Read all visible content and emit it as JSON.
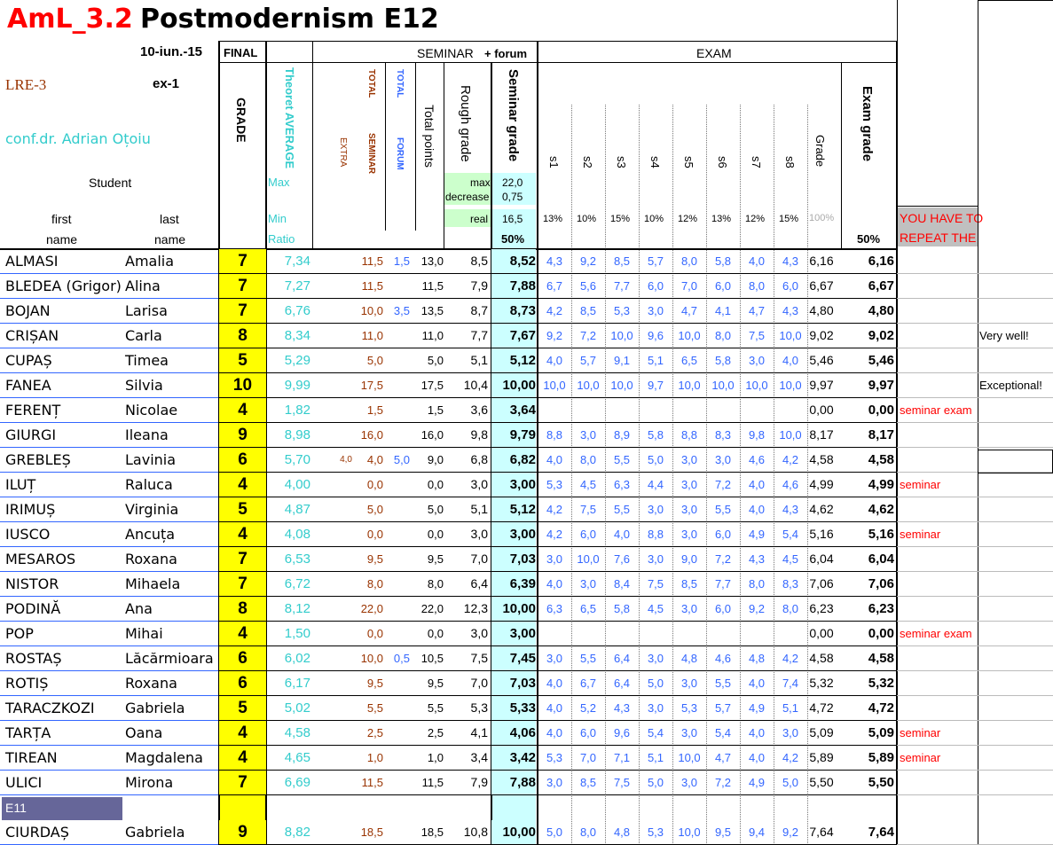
{
  "title": {
    "code": "AmL_3.2",
    "name": "Postmodernism E12"
  },
  "header": {
    "date": "10-iun.-15",
    "ex": "ex-1",
    "lre": "LRE-3",
    "teacher": "conf.dr. Adrian Oțoiu",
    "student_label": "Student",
    "first_label": "first",
    "last_label": "last",
    "name_label": "name",
    "final_label": "FINAL",
    "grade_label": "GRADE",
    "theoret_label": "Theoret AVERAGE",
    "max_label": "Max",
    "min_label": "Min",
    "ratio_label": "Ratio",
    "seminar_label": "SEMINAR",
    "forum_plus_label": "+ forum",
    "total_label": "TOTAL",
    "seminar_sub_label": "SEMINAR",
    "extra_label": "EXTRA",
    "total_forum_label": "TOTAL",
    "forum_sub_label": "FORUM",
    "total_points_label": "Total points",
    "rough_grade_label": "Rough grade",
    "seminar_grade_label": "Seminar grade",
    "max_box_label": "max",
    "max_box_value": "22,0",
    "decrease_label": "decrease",
    "decrease_value": "0,75",
    "real_label": "real",
    "real_value": "16,5",
    "seminar_pct": "50%",
    "exam_label": "EXAM",
    "exam_grade_label": "Exam grade",
    "exam_pct": "50%",
    "grade_col_label": "Grade",
    "grade_pct": "100%",
    "repeat_line1": "YOU HAVE TO",
    "repeat_line2": "REPEAT THE",
    "subjects": [
      "s1",
      "s2",
      "s3",
      "s4",
      "s5",
      "s6",
      "s7",
      "s8"
    ],
    "weights": [
      "13%",
      "10%",
      "15%",
      "10%",
      "12%",
      "13%",
      "12%",
      "15%"
    ]
  },
  "students": [
    {
      "first": "ALMASI",
      "last": "Amalia",
      "grade": "7",
      "theor": "7,34",
      "extra": "",
      "tsem": "11,5",
      "forum": "1,5",
      "tpts": "13,0",
      "rough": "8,5",
      "semg": "8,52",
      "s": [
        "4,3",
        "9,2",
        "8,5",
        "5,7",
        "8,0",
        "5,8",
        "4,0",
        "4,3"
      ],
      "exg": "6,16",
      "exgrade": "6,16",
      "note": "",
      "comment": ""
    },
    {
      "first": "BLEDEA (Grigor)",
      "last": "Alina",
      "grade": "7",
      "theor": "7,27",
      "extra": "",
      "tsem": "11,5",
      "forum": "",
      "tpts": "11,5",
      "rough": "7,9",
      "semg": "7,88",
      "s": [
        "6,7",
        "5,6",
        "7,7",
        "6,0",
        "7,0",
        "6,0",
        "8,0",
        "6,0"
      ],
      "exg": "6,67",
      "exgrade": "6,67",
      "note": "",
      "comment": ""
    },
    {
      "first": "BOJAN",
      "last": "Larisa",
      "grade": "7",
      "theor": "6,76",
      "extra": "",
      "tsem": "10,0",
      "forum": "3,5",
      "tpts": "13,5",
      "rough": "8,7",
      "semg": "8,73",
      "s": [
        "4,2",
        "8,5",
        "5,3",
        "3,0",
        "4,7",
        "4,1",
        "4,7",
        "4,3"
      ],
      "exg": "4,80",
      "exgrade": "4,80",
      "note": "",
      "comment": ""
    },
    {
      "first": "CRIȘAN",
      "last": "Carla",
      "grade": "8",
      "theor": "8,34",
      "extra": "",
      "tsem": "11,0",
      "forum": "",
      "tpts": "11,0",
      "rough": "7,7",
      "semg": "7,67",
      "s": [
        "9,2",
        "7,2",
        "10,0",
        "9,6",
        "10,0",
        "8,0",
        "7,5",
        "10,0"
      ],
      "exg": "9,02",
      "exgrade": "9,02",
      "note": "",
      "comment": "Very well!"
    },
    {
      "first": "CUPAȘ",
      "last": "Timea",
      "grade": "5",
      "theor": "5,29",
      "extra": "",
      "tsem": "5,0",
      "forum": "",
      "tpts": "5,0",
      "rough": "5,1",
      "semg": "5,12",
      "s": [
        "4,0",
        "5,7",
        "9,1",
        "5,1",
        "6,5",
        "5,8",
        "3,0",
        "4,0"
      ],
      "exg": "5,46",
      "exgrade": "5,46",
      "note": "",
      "comment": ""
    },
    {
      "first": "FANEA",
      "last": "Silvia",
      "grade": "10",
      "theor": "9,99",
      "extra": "",
      "tsem": "17,5",
      "forum": "",
      "tpts": "17,5",
      "rough": "10,4",
      "semg": "10,00",
      "s": [
        "10,0",
        "10,0",
        "10,0",
        "9,7",
        "10,0",
        "10,0",
        "10,0",
        "10,0"
      ],
      "exg": "9,97",
      "exgrade": "9,97",
      "note": "",
      "comment": "Exceptional!"
    },
    {
      "first": "FERENȚ",
      "last": "Nicolae",
      "grade": "4",
      "theor": "1,82",
      "extra": "",
      "tsem": "1,5",
      "forum": "",
      "tpts": "1,5",
      "rough": "3,6",
      "semg": "3,64",
      "s": [
        "",
        "",
        "",
        "",
        "",
        "",
        "",
        ""
      ],
      "exg": "0,00",
      "exgrade": "0,00",
      "note": "seminar exam",
      "comment": ""
    },
    {
      "first": "GIURGI",
      "last": "Ileana",
      "grade": "9",
      "theor": "8,98",
      "extra": "",
      "tsem": "16,0",
      "forum": "",
      "tpts": "16,0",
      "rough": "9,8",
      "semg": "9,79",
      "s": [
        "8,8",
        "3,0",
        "8,9",
        "5,8",
        "8,8",
        "8,3",
        "9,8",
        "10,0"
      ],
      "exg": "8,17",
      "exgrade": "8,17",
      "note": "",
      "comment": ""
    },
    {
      "first": "GREBLEȘ",
      "last": "Lavinia",
      "grade": "6",
      "theor": "5,70",
      "extra": "4,0",
      "tsem": "4,0",
      "forum": "5,0",
      "tpts": "9,0",
      "rough": "6,8",
      "semg": "6,82",
      "s": [
        "4,0",
        "8,0",
        "5,5",
        "5,0",
        "3,0",
        "3,0",
        "4,6",
        "4,2"
      ],
      "exg": "4,58",
      "exgrade": "4,58",
      "note": "",
      "comment": ""
    },
    {
      "first": "ILUȚ",
      "last": "Raluca",
      "grade": "4",
      "theor": "4,00",
      "extra": "",
      "tsem": "0,0",
      "forum": "",
      "tpts": "0,0",
      "rough": "3,0",
      "semg": "3,00",
      "s": [
        "5,3",
        "4,5",
        "6,3",
        "4,4",
        "3,0",
        "7,2",
        "4,0",
        "4,6"
      ],
      "exg": "4,99",
      "exgrade": "4,99",
      "note": "seminar",
      "comment": ""
    },
    {
      "first": "IRIMUȘ",
      "last": "Virginia",
      "grade": "5",
      "theor": "4,87",
      "extra": "",
      "tsem": "5,0",
      "forum": "",
      "tpts": "5,0",
      "rough": "5,1",
      "semg": "5,12",
      "s": [
        "4,2",
        "7,5",
        "5,5",
        "3,0",
        "3,0",
        "5,5",
        "4,0",
        "4,3"
      ],
      "exg": "4,62",
      "exgrade": "4,62",
      "note": "",
      "comment": ""
    },
    {
      "first": "IUSCO",
      "last": "Ancuța",
      "grade": "4",
      "theor": "4,08",
      "extra": "",
      "tsem": "0,0",
      "forum": "",
      "tpts": "0,0",
      "rough": "3,0",
      "semg": "3,00",
      "s": [
        "4,2",
        "6,0",
        "4,0",
        "8,8",
        "3,0",
        "6,0",
        "4,9",
        "5,4"
      ],
      "exg": "5,16",
      "exgrade": "5,16",
      "note": "seminar",
      "comment": ""
    },
    {
      "first": "MESAROS",
      "last": "Roxana",
      "grade": "7",
      "theor": "6,53",
      "extra": "",
      "tsem": "9,5",
      "forum": "",
      "tpts": "9,5",
      "rough": "7,0",
      "semg": "7,03",
      "s": [
        "3,0",
        "10,0",
        "7,6",
        "3,0",
        "9,0",
        "7,2",
        "4,3",
        "4,5"
      ],
      "exg": "6,04",
      "exgrade": "6,04",
      "note": "",
      "comment": ""
    },
    {
      "first": "NISTOR",
      "last": "Mihaela",
      "grade": "7",
      "theor": "6,72",
      "extra": "",
      "tsem": "8,0",
      "forum": "",
      "tpts": "8,0",
      "rough": "6,4",
      "semg": "6,39",
      "s": [
        "4,0",
        "3,0",
        "8,4",
        "7,5",
        "8,5",
        "7,7",
        "8,0",
        "8,3"
      ],
      "exg": "7,06",
      "exgrade": "7,06",
      "note": "",
      "comment": ""
    },
    {
      "first": "PODINĂ",
      "last": "Ana",
      "grade": "8",
      "theor": "8,12",
      "extra": "",
      "tsem": "22,0",
      "forum": "",
      "tpts": "22,0",
      "rough": "12,3",
      "semg": "10,00",
      "s": [
        "6,3",
        "6,5",
        "5,8",
        "4,5",
        "3,0",
        "6,0",
        "9,2",
        "8,0"
      ],
      "exg": "6,23",
      "exgrade": "6,23",
      "note": "",
      "comment": ""
    },
    {
      "first": "POP",
      "last": "Mihai",
      "grade": "4",
      "theor": "1,50",
      "extra": "",
      "tsem": "0,0",
      "forum": "",
      "tpts": "0,0",
      "rough": "3,0",
      "semg": "3,00",
      "s": [
        "",
        "",
        "",
        "",
        "",
        "",
        "",
        ""
      ],
      "exg": "0,00",
      "exgrade": "0,00",
      "note": "seminar exam",
      "comment": ""
    },
    {
      "first": "ROSTAȘ",
      "last": "Lăcărmioara",
      "grade": "6",
      "theor": "6,02",
      "extra": "",
      "tsem": "10,0",
      "forum": "0,5",
      "tpts": "10,5",
      "rough": "7,5",
      "semg": "7,45",
      "s": [
        "3,0",
        "5,5",
        "6,4",
        "3,0",
        "4,8",
        "4,6",
        "4,8",
        "4,2"
      ],
      "exg": "4,58",
      "exgrade": "4,58",
      "note": "",
      "comment": ""
    },
    {
      "first": "ROTIȘ",
      "last": "Roxana",
      "grade": "6",
      "theor": "6,17",
      "extra": "",
      "tsem": "9,5",
      "forum": "",
      "tpts": "9,5",
      "rough": "7,0",
      "semg": "7,03",
      "s": [
        "4,0",
        "6,7",
        "6,4",
        "5,0",
        "3,0",
        "5,5",
        "4,0",
        "7,4"
      ],
      "exg": "5,32",
      "exgrade": "5,32",
      "note": "",
      "comment": ""
    },
    {
      "first": "TARACZKOZI",
      "last": "Gabriela",
      "grade": "5",
      "theor": "5,02",
      "extra": "",
      "tsem": "5,5",
      "forum": "",
      "tpts": "5,5",
      "rough": "5,3",
      "semg": "5,33",
      "s": [
        "4,0",
        "5,2",
        "4,3",
        "3,0",
        "5,3",
        "5,7",
        "4,9",
        "5,1"
      ],
      "exg": "4,72",
      "exgrade": "4,72",
      "note": "",
      "comment": ""
    },
    {
      "first": "TARȚA",
      "last": "Oana",
      "grade": "4",
      "theor": "4,58",
      "extra": "",
      "tsem": "2,5",
      "forum": "",
      "tpts": "2,5",
      "rough": "4,1",
      "semg": "4,06",
      "s": [
        "4,0",
        "6,0",
        "9,6",
        "5,4",
        "3,0",
        "5,4",
        "4,0",
        "3,0"
      ],
      "exg": "5,09",
      "exgrade": "5,09",
      "note": "seminar",
      "comment": ""
    },
    {
      "first": "TIREAN",
      "last": "Magdalena",
      "grade": "4",
      "theor": "4,65",
      "extra": "",
      "tsem": "1,0",
      "forum": "",
      "tpts": "1,0",
      "rough": "3,4",
      "semg": "3,42",
      "s": [
        "5,3",
        "7,0",
        "7,1",
        "5,1",
        "10,0",
        "4,7",
        "4,0",
        "4,2"
      ],
      "exg": "5,89",
      "exgrade": "5,89",
      "note": "seminar",
      "comment": ""
    },
    {
      "first": "ULICI",
      "last": "Mirona",
      "grade": "7",
      "theor": "6,69",
      "extra": "",
      "tsem": "11,5",
      "forum": "",
      "tpts": "11,5",
      "rough": "7,9",
      "semg": "7,88",
      "s": [
        "3,0",
        "8,5",
        "7,5",
        "5,0",
        "3,0",
        "7,2",
        "4,9",
        "5,0"
      ],
      "exg": "5,50",
      "exgrade": "5,50",
      "note": "",
      "comment": ""
    }
  ],
  "section_e11": {
    "label": "E11"
  },
  "students_e11": [
    {
      "first": "CIURDAȘ",
      "last": "Gabriela",
      "grade": "9",
      "theor": "8,82",
      "extra": "",
      "tsem": "18,5",
      "forum": "",
      "tpts": "18,5",
      "rough": "10,8",
      "semg": "10,00",
      "s": [
        "5,0",
        "8,0",
        "4,8",
        "5,3",
        "10,0",
        "9,5",
        "9,4",
        "9,2"
      ],
      "exg": "7,64",
      "exgrade": "7,64",
      "note": "",
      "comment": ""
    }
  ]
}
